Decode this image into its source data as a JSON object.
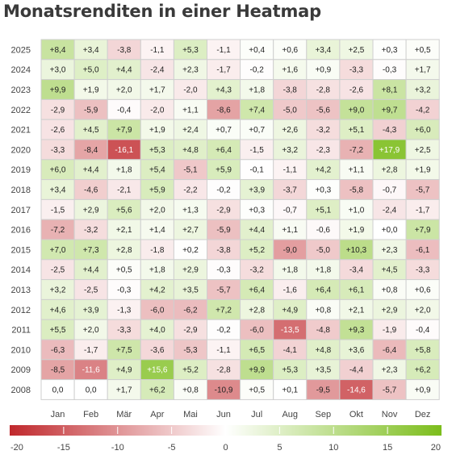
{
  "chart_data": {
    "type": "heatmap",
    "title": "Monatsrenditen in einer Heatmap",
    "xlabel": "",
    "ylabel": "",
    "columns": [
      "Jan",
      "Feb",
      "Mär",
      "Apr",
      "Mai",
      "Jun",
      "Jul",
      "Aug",
      "Sep",
      "Okt",
      "Nov",
      "Dez"
    ],
    "rows": [
      "2025",
      "2024",
      "2023",
      "2022",
      "2021",
      "2020",
      "2019",
      "2018",
      "2017",
      "2016",
      "2015",
      "2014",
      "2013",
      "2012",
      "2011",
      "2010",
      "2009",
      "2008"
    ],
    "values": [
      [
        "+8,4",
        "+3,4",
        "-3,8",
        "-1,1",
        "+5,3",
        "-1,1",
        "+0,4",
        "+0,6",
        "+3,4",
        "+2,5",
        "+0,3",
        "+0,5"
      ],
      [
        "+3,0",
        "+5,0",
        "+4,4",
        "-2,4",
        "+2,3",
        "-1,7",
        "-0,2",
        "+1,6",
        "+0,9",
        "-3,3",
        "-0,3",
        "+1,7"
      ],
      [
        "+9,9",
        "+1,9",
        "+2,0",
        "+1,7",
        "-2,0",
        "+4,3",
        "+1,8",
        "-3,8",
        "-2,8",
        "-2,6",
        "+8,1",
        "+3,2"
      ],
      [
        "-2,9",
        "-5,9",
        "-0,4",
        "-2,0",
        "+1,1",
        "-8,6",
        "+7,4",
        "-5,0",
        "-5,6",
        "+9,0",
        "+9,7",
        "-4,2"
      ],
      [
        "-2,6",
        "+4,5",
        "+7,9",
        "+1,9",
        "+2,4",
        "+0,7",
        "+0,7",
        "+2,6",
        "-3,2",
        "+5,1",
        "-4,3",
        "+6,0"
      ],
      [
        "-3,3",
        "-8,4",
        "-16,1",
        "+5,3",
        "+4,8",
        "+6,4",
        "-1,5",
        "+3,2",
        "-2,3",
        "-7,2",
        "+17,9",
        "+2,5"
      ],
      [
        "+6,0",
        "+4,4",
        "+1,8",
        "+5,4",
        "-5,1",
        "+5,9",
        "-0,1",
        "-1,1",
        "+4,2",
        "+1,1",
        "+2,8",
        "+1,9"
      ],
      [
        "+3,4",
        "-4,6",
        "-2,1",
        "+5,9",
        "-2,2",
        "-0,2",
        "+3,9",
        "-3,7",
        "+0,3",
        "-5,8",
        "-0,7",
        "-5,7"
      ],
      [
        "-1,5",
        "+2,9",
        "+5,6",
        "+2,0",
        "+1,3",
        "-2,9",
        "+0,3",
        "-0,7",
        "+5,1",
        "+1,0",
        "-2,4",
        "-1,7"
      ],
      [
        "-7,2",
        "-3,2",
        "+2,1",
        "+1,4",
        "+2,7",
        "-5,9",
        "+4,4",
        "+1,1",
        "-0,6",
        "+1,9",
        "+0,0",
        "+7,9"
      ],
      [
        "+7,0",
        "+7,3",
        "+2,8",
        "-1,8",
        "+0,2",
        "-3,8",
        "+5,2",
        "-9,0",
        "-5,0",
        "+10,3",
        "+2,3",
        "-6,1"
      ],
      [
        "-2,5",
        "+4,4",
        "+0,5",
        "+1,8",
        "+2,9",
        "-0,3",
        "-3,2",
        "+1,8",
        "+1,8",
        "-3,4",
        "+4,5",
        "-3,3"
      ],
      [
        "+3,2",
        "-2,5",
        "-0,3",
        "+4,2",
        "+3,5",
        "-5,7",
        "+6,4",
        "-1,6",
        "+6,4",
        "+6,1",
        "+0,8",
        "+0,6"
      ],
      [
        "+4,6",
        "+3,9",
        "-1,3",
        "-6,0",
        "-6,2",
        "+7,2",
        "+2,8",
        "+4,9",
        "+0,8",
        "+2,1",
        "+2,9",
        "+2,0"
      ],
      [
        "+5,5",
        "+2,0",
        "-3,3",
        "+4,0",
        "-2,9",
        "-0,2",
        "-6,0",
        "-13,5",
        "-4,8",
        "+9,3",
        "-1,9",
        "-0,4"
      ],
      [
        "-6,3",
        "-1,7",
        "+7,5",
        "-3,6",
        "-5,3",
        "-1,1",
        "+6,5",
        "-4,1",
        "+4,8",
        "+3,6",
        "-6,4",
        "+5,8"
      ],
      [
        "-8,5",
        "-11,6",
        "+4,9",
        "+15,6",
        "+5,2",
        "-2,8",
        "+9,9",
        "+5,3",
        "+3,5",
        "-4,4",
        "+2,3",
        "+6,2"
      ],
      [
        "0,0",
        "0,0",
        "+1,7",
        "+6,2",
        "+0,8",
        "-10,9",
        "+0,5",
        "+0,1",
        "-9,5",
        "-14,6",
        "-5,7",
        "+0,9"
      ]
    ],
    "colorscale": {
      "range": [
        -20,
        20
      ],
      "ticks": [
        "-20",
        "-15",
        "-10",
        "-5",
        "0",
        "5",
        "10",
        "15",
        "20"
      ],
      "negative_color": "#c0282c",
      "zero_color": "#ffffff",
      "positive_color": "#7cbd1c"
    },
    "legend": "colorbar-bottom",
    "grid": true
  }
}
